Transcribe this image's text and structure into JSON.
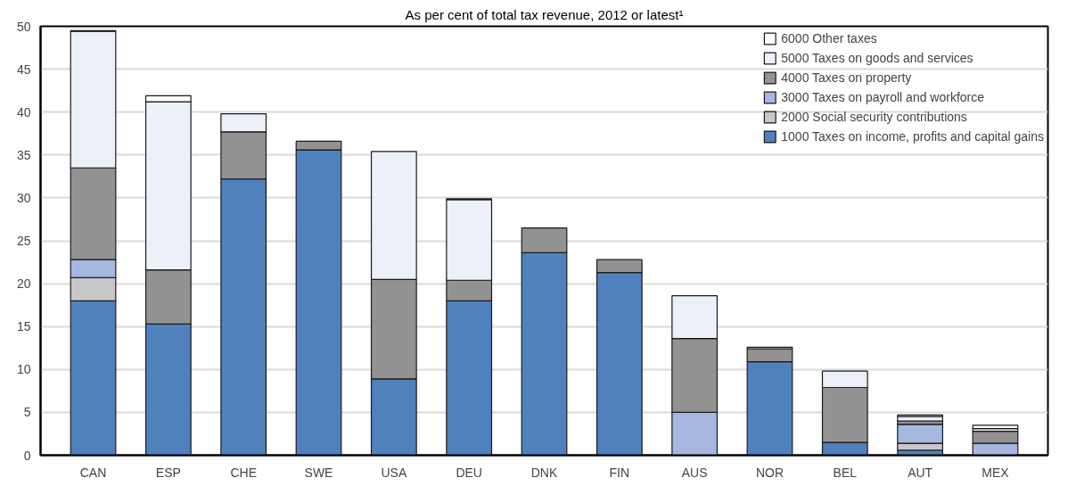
{
  "chart_data": {
    "type": "bar",
    "stacked": true,
    "title": "As per cent of total tax revenue, 2012 or latest¹",
    "categories": [
      "CAN",
      "ESP",
      "CHE",
      "SWE",
      "USA",
      "DEU",
      "DNK",
      "FIN",
      "AUS",
      "NOR",
      "BEL",
      "AUT",
      "MEX"
    ],
    "series": [
      {
        "name": "1000 Taxes on income, profits and capital gains",
        "color": "#4f81bd",
        "values": [
          18.0,
          15.3,
          32.2,
          35.6,
          8.9,
          18.0,
          23.6,
          21.3,
          null,
          10.9,
          1.5,
          0.6,
          null
        ]
      },
      {
        "name": "2000 Social security contributions",
        "color": "#c8c8c8",
        "values": [
          2.7,
          null,
          null,
          null,
          null,
          null,
          null,
          null,
          null,
          null,
          null,
          0.8,
          null
        ]
      },
      {
        "name": "3000 Taxes on payroll and workforce",
        "color": "#a6b7e0",
        "values": [
          2.1,
          null,
          null,
          null,
          null,
          null,
          null,
          null,
          5.0,
          null,
          null,
          2.2,
          1.4
        ]
      },
      {
        "name": "4000 Taxes on property",
        "color": "#929292",
        "values": [
          10.7,
          6.3,
          5.5,
          1.0,
          11.6,
          2.4,
          2.9,
          1.5,
          8.6,
          1.5,
          6.4,
          0.4,
          1.4
        ]
      },
      {
        "name": "5000 Taxes on goods and services",
        "color": "#ecf0f8",
        "values": [
          15.9,
          19.6,
          2.1,
          null,
          14.9,
          9.4,
          null,
          null,
          5.0,
          null,
          1.9,
          0.5,
          0.3
        ]
      },
      {
        "name": "6000 Other taxes",
        "color": "#ffffff",
        "values": [
          0.1,
          0.7,
          null,
          null,
          null,
          0.1,
          null,
          null,
          null,
          0.2,
          null,
          0.2,
          0.4
        ]
      }
    ],
    "ylim": [
      0,
      50
    ],
    "yticks": [
      0,
      5,
      10,
      15,
      20,
      25,
      30,
      35,
      40,
      45,
      50
    ],
    "grid": "y",
    "legend": "top right"
  }
}
